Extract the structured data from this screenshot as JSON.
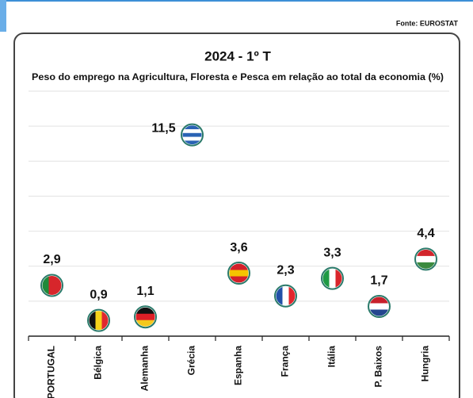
{
  "chart_data": {
    "type": "flag-dot",
    "title": "2024 - 1º T",
    "subtitle": "Peso do emprego na Agricultura, Floresta e Pesca em relação ao total da economia (%)",
    "source": "Fonte: EUROSTAT",
    "categories": [
      "PORTUGAL",
      "Bélgica",
      "Alemanha",
      "Grécia",
      "Espanha",
      "França",
      "Itália",
      "P. Baixos",
      "Hungria"
    ],
    "values": [
      2.9,
      0.9,
      1.1,
      11.5,
      3.6,
      2.3,
      3.3,
      1.7,
      4.4
    ],
    "value_labels": [
      "2,9",
      "0,9",
      "1,1",
      "11,5",
      "3,6",
      "2,3",
      "3,3",
      "1,7",
      "4,4"
    ],
    "flags": [
      {
        "direction": "vertical",
        "colors": [
          "#1f8a3a",
          "#d7262b",
          "#d7262b"
        ]
      },
      {
        "direction": "vertical",
        "colors": [
          "#111111",
          "#f6d21a",
          "#e0282e"
        ]
      },
      {
        "direction": "horizontal",
        "colors": [
          "#111111",
          "#dd1f26",
          "#f4c81c"
        ]
      },
      {
        "direction": "horizontal",
        "colors": [
          "#2a63b4",
          "#ffffff",
          "#2a63b4",
          "#ffffff",
          "#2a63b4"
        ]
      },
      {
        "direction": "horizontal",
        "colors": [
          "#d4202a",
          "#f5c400",
          "#d4202a"
        ]
      },
      {
        "direction": "vertical",
        "colors": [
          "#2150a8",
          "#ffffff",
          "#e2262d"
        ]
      },
      {
        "direction": "vertical",
        "colors": [
          "#1f9a45",
          "#ffffff",
          "#d9262c"
        ]
      },
      {
        "direction": "horizontal",
        "colors": [
          "#c8202b",
          "#ffffff",
          "#24468f"
        ]
      },
      {
        "direction": "horizontal",
        "colors": [
          "#d2252c",
          "#ffffff",
          "#3a8a3f"
        ]
      }
    ],
    "ylim": [
      0,
      14
    ],
    "yticks": [
      0,
      2,
      4,
      6,
      8,
      10,
      12,
      14
    ],
    "grid": true
  }
}
